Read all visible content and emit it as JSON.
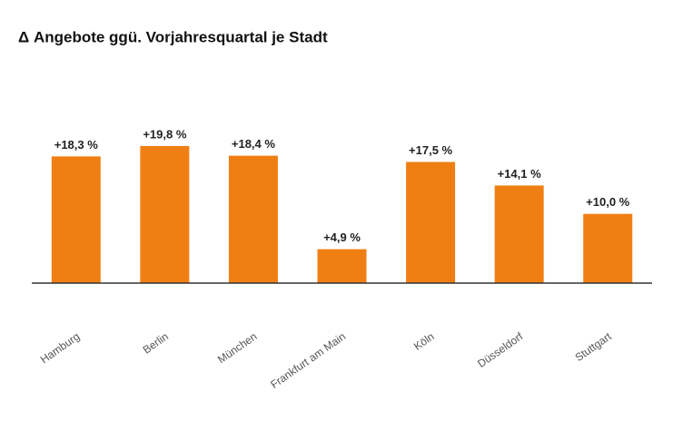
{
  "chart_data": {
    "type": "bar",
    "title": "Δ Angebote ggü. Vorjahresquartal je Stadt",
    "categories": [
      "Hamburg",
      "Berlin",
      "München",
      "Frankfurt am Main",
      "Köln",
      "Düsseldorf",
      "Stuttgart"
    ],
    "values": [
      18.3,
      19.8,
      18.4,
      4.9,
      17.5,
      14.1,
      10.0
    ],
    "value_labels": [
      "+18,3 %",
      "+19,8 %",
      "+18,4 %",
      "+4,9 %",
      "+17,5 %",
      "+14,1 %",
      "+10,0 %"
    ],
    "color": "#f07f13"
  }
}
